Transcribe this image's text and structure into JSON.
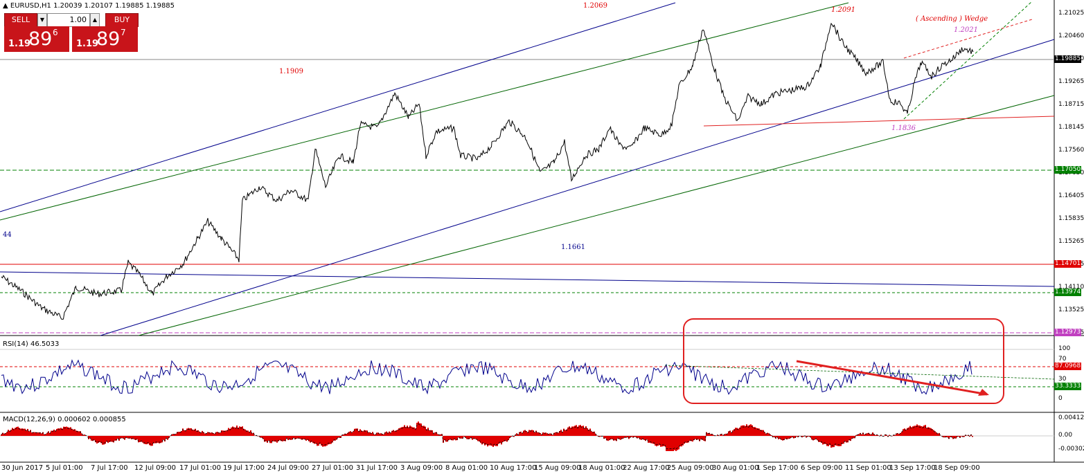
{
  "window": {
    "symbol_header": "EURUSD,H1  1.20039 1.20107 1.19885 1.19885"
  },
  "trade_panel": {
    "sell_label": "SELL",
    "buy_label": "BUY",
    "lot_value": "1.00",
    "sell_price_small": "1.19",
    "sell_price_big": "89",
    "sell_price_sup": "6",
    "buy_price_small": "1.19",
    "buy_price_big": "89",
    "buy_price_sup": "7"
  },
  "price_axis": {
    "ticks": [
      "1.21025",
      "1.20460",
      "1.19930",
      "1.19265",
      "1.18715",
      "1.18145",
      "1.17560",
      "1.17050",
      "1.16405",
      "1.15835",
      "1.15265",
      "1.14685",
      "1.14110",
      "1.13525",
      "1.12955"
    ],
    "labels": [
      {
        "text": "1.19885",
        "bg": "#000000"
      },
      {
        "text": "1.17050",
        "bg": "#008000"
      },
      {
        "text": "1.14701",
        "bg": "#e00000"
      },
      {
        "text": "1.13974",
        "bg": "#008000"
      },
      {
        "text": "1.12973",
        "bg": "#c040c0"
      }
    ]
  },
  "annotations": {
    "a1": "1.2069",
    "a2": "1.2091",
    "a3": "( Ascending ) Wedge",
    "a4": "1.2021",
    "a5": "1.1909",
    "a6": "1.1836",
    "a7": "1.1661",
    "a8": "44"
  },
  "rsi": {
    "header": "RSI(14) 46.5033",
    "ticks": [
      "100",
      "70",
      "30",
      "0"
    ],
    "label_high": "87.0968",
    "label_low": "33.3333"
  },
  "macd": {
    "header": "MACD(12,26,9) 0.000602 0.000855",
    "ticks": [
      "0.004122",
      "0.00",
      "-0.003021"
    ]
  },
  "time_axis": {
    "labels": [
      "30 Jun 2017",
      "5 Jul 01:00",
      "7 Jul 17:00",
      "12 Jul 09:00",
      "17 Jul 01:00",
      "19 Jul 17:00",
      "24 Jul 09:00",
      "27 Jul 01:00",
      "31 Jul 17:00",
      "3 Aug 09:00",
      "8 Aug 01:00",
      "10 Aug 17:00",
      "15 Aug 09:00",
      "18 Aug 01:00",
      "22 Aug 17:00",
      "25 Aug 09:00",
      "30 Aug 01:00",
      "1 Sep 17:00",
      "6 Sep 09:00",
      "11 Sep 01:00",
      "13 Sep 17:00",
      "18 Sep 09:00"
    ]
  },
  "colors": {
    "bear": "#e00000",
    "channel_blue": "#00008b",
    "channel_green": "#006400",
    "accent_red": "#e02020"
  }
}
